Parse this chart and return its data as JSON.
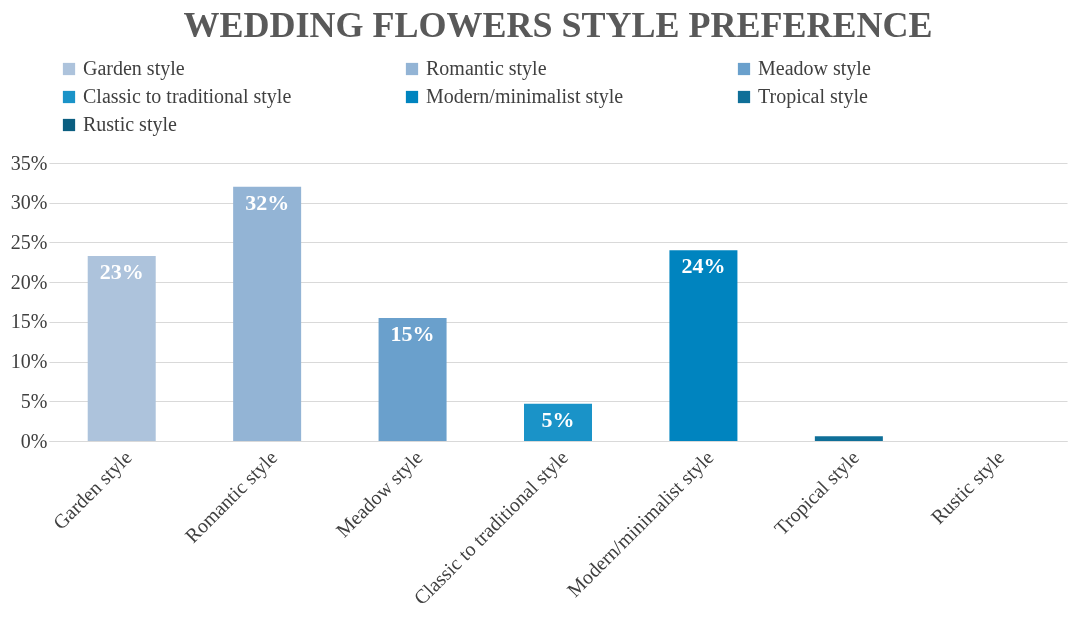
{
  "chart_data": {
    "type": "bar",
    "title": "WEDDING FLOWERS STYLE PREFERENCE",
    "categories": [
      "Garden style",
      "Romantic style",
      "Meadow style",
      "Classic to traditional style",
      "Modern/minimalist style",
      "Tropical style",
      "Rustic style"
    ],
    "series": [
      {
        "name": "Garden style",
        "color": "#adc3dc",
        "values": [
          23.3,
          null,
          null,
          null,
          null,
          null,
          null
        ],
        "value_labels": [
          "23%",
          null,
          null,
          null,
          null,
          null,
          null
        ]
      },
      {
        "name": "Romantic style",
        "color": "#93b4d5",
        "values": [
          null,
          32,
          null,
          null,
          null,
          null,
          null
        ],
        "value_labels": [
          null,
          "32%",
          null,
          null,
          null,
          null,
          null
        ]
      },
      {
        "name": "Meadow style",
        "color": "#6aa0cc",
        "values": [
          null,
          null,
          15.5,
          null,
          null,
          null,
          null
        ],
        "value_labels": [
          null,
          null,
          "15%",
          null,
          null,
          null,
          null
        ]
      },
      {
        "name": "Classic to traditional style",
        "color": "#1a93c8",
        "values": [
          null,
          null,
          null,
          4.7,
          null,
          null,
          null
        ],
        "value_labels": [
          null,
          null,
          null,
          "5%",
          null,
          null,
          null
        ]
      },
      {
        "name": "Modern/minimalist style",
        "color": "#0084bf",
        "values": [
          null,
          null,
          null,
          null,
          24,
          null,
          null
        ],
        "value_labels": [
          null,
          null,
          null,
          null,
          "24%",
          null,
          null
        ]
      },
      {
        "name": "Tropical style",
        "color": "#0f6f98",
        "values": [
          null,
          null,
          null,
          null,
          null,
          0.6,
          null
        ]
      },
      {
        "name": "Rustic style",
        "color": "#0b5e80",
        "values": [
          null,
          null,
          null,
          null,
          null,
          null,
          0
        ]
      }
    ],
    "ylim": [
      0,
      35
    ],
    "yticks": [
      {
        "value": 0,
        "label": "0%"
      },
      {
        "value": 5,
        "label": "5%"
      },
      {
        "value": 10,
        "label": "10%"
      },
      {
        "value": 15,
        "label": "15%"
      },
      {
        "value": 20,
        "label": "20%"
      },
      {
        "value": 25,
        "label": "25%"
      },
      {
        "value": 30,
        "label": "30%"
      },
      {
        "value": 35,
        "label": "35%"
      }
    ],
    "grid": "y",
    "legend": "top"
  }
}
